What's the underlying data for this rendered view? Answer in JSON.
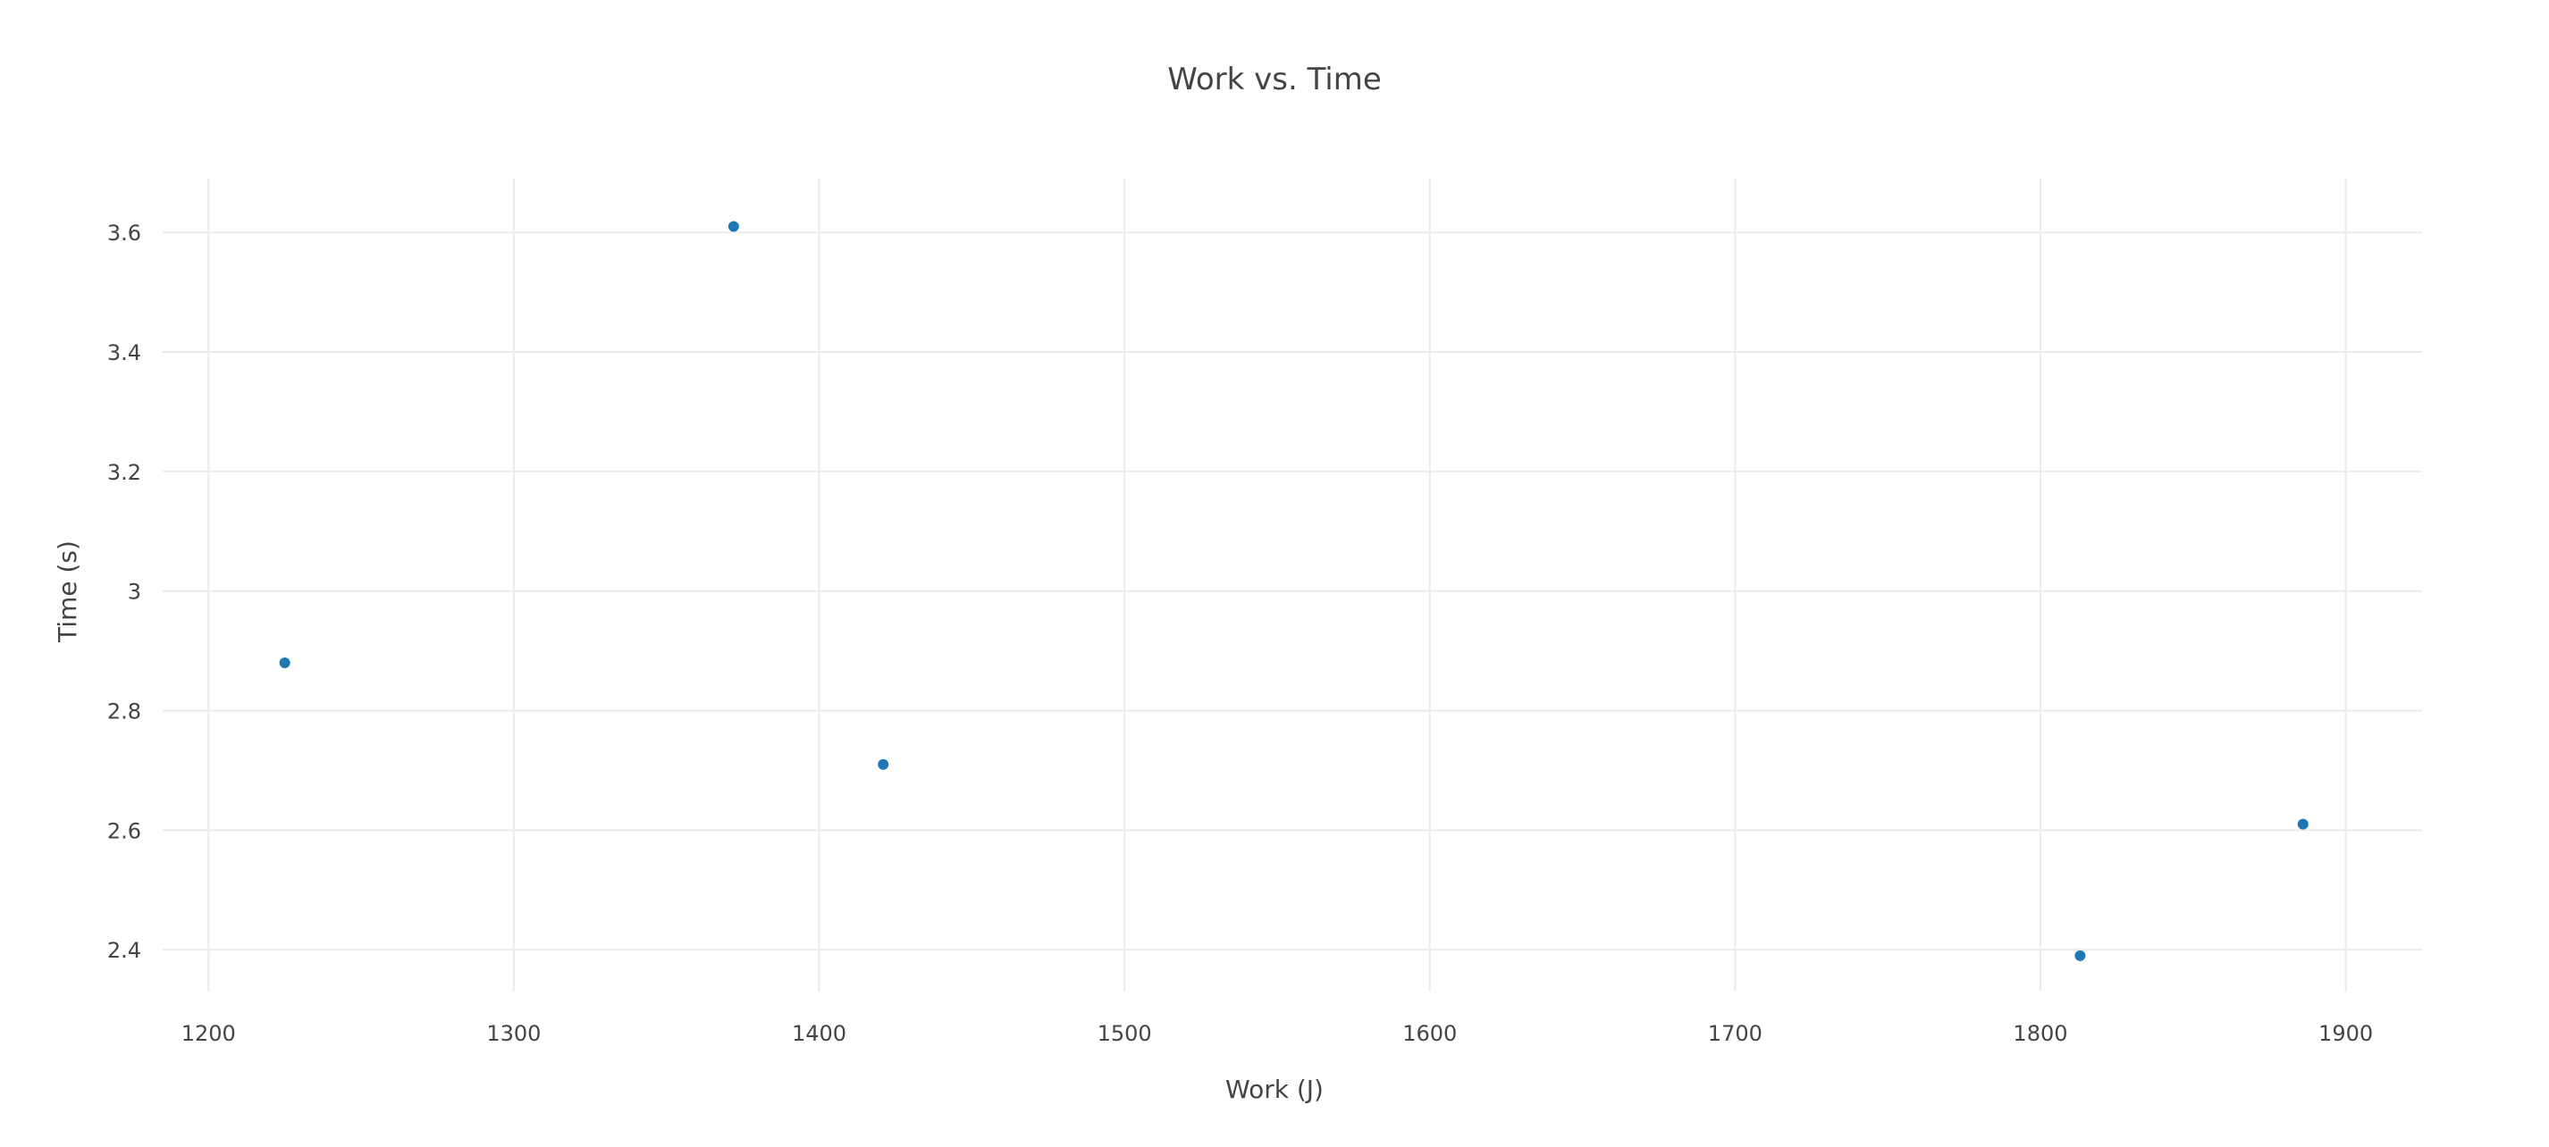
{
  "colors": {
    "marker": "#1f77b4",
    "grid": "#ebebeb",
    "text": "#444444",
    "background": "#ffffff"
  },
  "chart_data": {
    "type": "scatter",
    "title": "Work vs. Time",
    "xlabel": "Work (J)",
    "ylabel": "Time (s)",
    "xlim": [
      1185,
      1925
    ],
    "ylim": [
      2.33,
      3.69
    ],
    "xticks": [
      1200,
      1300,
      1400,
      1500,
      1600,
      1700,
      1800,
      1900
    ],
    "xtick_labels": [
      "1200",
      "1300",
      "1400",
      "1500",
      "1600",
      "1700",
      "1800",
      "1900"
    ],
    "yticks": [
      2.4,
      2.6,
      2.8,
      3.0,
      3.2,
      3.4,
      3.6
    ],
    "ytick_labels": [
      "2.4",
      "2.6",
      "2.8",
      "3",
      "3.2",
      "3.4",
      "3.6"
    ],
    "grid": true,
    "legend": "none",
    "series": [
      {
        "x": [
          1225,
          1372,
          1421,
          1813,
          1886
        ],
        "y": [
          2.88,
          3.61,
          2.71,
          2.39,
          2.61
        ]
      }
    ]
  }
}
